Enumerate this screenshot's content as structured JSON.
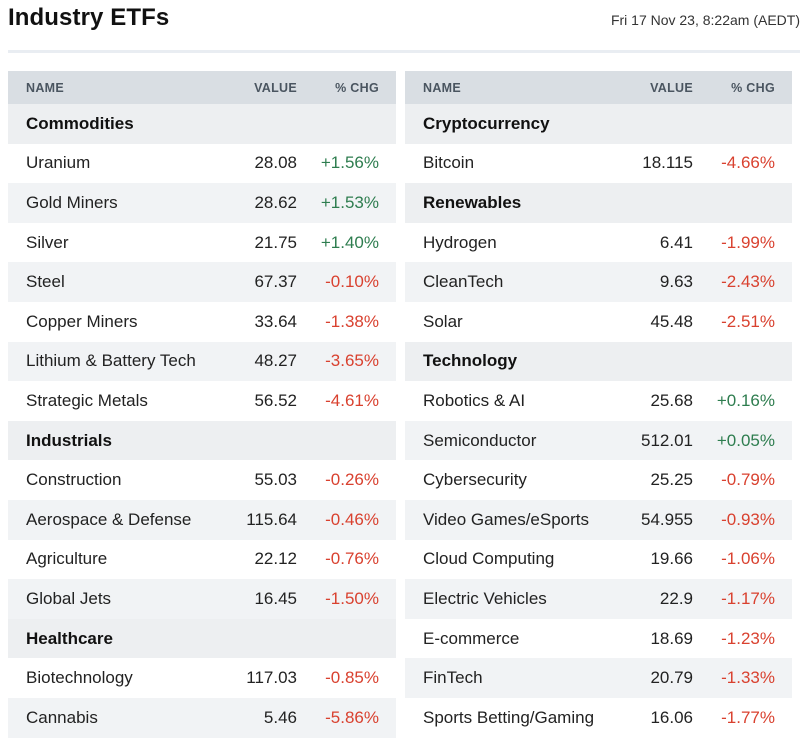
{
  "header": {
    "title": "Industry ETFs",
    "timestamp": "Fri 17 Nov 23, 8:22am (AEDT)"
  },
  "columns": {
    "name": "NAME",
    "value": "VALUE",
    "chg": "% CHG"
  },
  "colors": {
    "positive": "#2e7d4f",
    "negative": "#d9412f",
    "header_bg": "#d9dee3",
    "group_bg": "#edeff1",
    "alt_row_bg": "#f1f3f5"
  },
  "left_panel": [
    {
      "type": "group",
      "name": "Commodities"
    },
    {
      "type": "item",
      "name": "Uranium",
      "value": "28.08",
      "chg": "+1.56%",
      "dir": "up"
    },
    {
      "type": "item",
      "name": "Gold Miners",
      "value": "28.62",
      "chg": "+1.53%",
      "dir": "up"
    },
    {
      "type": "item",
      "name": "Silver",
      "value": "21.75",
      "chg": "+1.40%",
      "dir": "up"
    },
    {
      "type": "item",
      "name": "Steel",
      "value": "67.37",
      "chg": "-0.10%",
      "dir": "down"
    },
    {
      "type": "item",
      "name": "Copper Miners",
      "value": "33.64",
      "chg": "-1.38%",
      "dir": "down"
    },
    {
      "type": "item",
      "name": "Lithium & Battery Tech",
      "value": "48.27",
      "chg": "-3.65%",
      "dir": "down"
    },
    {
      "type": "item",
      "name": "Strategic Metals",
      "value": "56.52",
      "chg": "-4.61%",
      "dir": "down"
    },
    {
      "type": "group",
      "name": "Industrials"
    },
    {
      "type": "item",
      "name": "Construction",
      "value": "55.03",
      "chg": "-0.26%",
      "dir": "down"
    },
    {
      "type": "item",
      "name": "Aerospace & Defense",
      "value": "115.64",
      "chg": "-0.46%",
      "dir": "down"
    },
    {
      "type": "item",
      "name": "Agriculture",
      "value": "22.12",
      "chg": "-0.76%",
      "dir": "down"
    },
    {
      "type": "item",
      "name": "Global Jets",
      "value": "16.45",
      "chg": "-1.50%",
      "dir": "down"
    },
    {
      "type": "group",
      "name": "Healthcare"
    },
    {
      "type": "item",
      "name": "Biotechnology",
      "value": "117.03",
      "chg": "-0.85%",
      "dir": "down"
    },
    {
      "type": "item",
      "name": "Cannabis",
      "value": "5.46",
      "chg": "-5.86%",
      "dir": "down"
    }
  ],
  "right_panel": [
    {
      "type": "group",
      "name": "Cryptocurrency"
    },
    {
      "type": "item",
      "name": "Bitcoin",
      "value": "18.115",
      "chg": "-4.66%",
      "dir": "down"
    },
    {
      "type": "group",
      "name": "Renewables"
    },
    {
      "type": "item",
      "name": "Hydrogen",
      "value": "6.41",
      "chg": "-1.99%",
      "dir": "down"
    },
    {
      "type": "item",
      "name": "CleanTech",
      "value": "9.63",
      "chg": "-2.43%",
      "dir": "down"
    },
    {
      "type": "item",
      "name": "Solar",
      "value": "45.48",
      "chg": "-2.51%",
      "dir": "down"
    },
    {
      "type": "group",
      "name": "Technology"
    },
    {
      "type": "item",
      "name": "Robotics & AI",
      "value": "25.68",
      "chg": "+0.16%",
      "dir": "up"
    },
    {
      "type": "item",
      "name": "Semiconductor",
      "value": "512.01",
      "chg": "+0.05%",
      "dir": "up"
    },
    {
      "type": "item",
      "name": "Cybersecurity",
      "value": "25.25",
      "chg": "-0.79%",
      "dir": "down"
    },
    {
      "type": "item",
      "name": "Video Games/eSports",
      "value": "54.955",
      "chg": "-0.93%",
      "dir": "down"
    },
    {
      "type": "item",
      "name": "Cloud Computing",
      "value": "19.66",
      "chg": "-1.06%",
      "dir": "down"
    },
    {
      "type": "item",
      "name": "Electric Vehicles",
      "value": "22.9",
      "chg": "-1.17%",
      "dir": "down"
    },
    {
      "type": "item",
      "name": "E-commerce",
      "value": "18.69",
      "chg": "-1.23%",
      "dir": "down"
    },
    {
      "type": "item",
      "name": "FinTech",
      "value": "20.79",
      "chg": "-1.33%",
      "dir": "down"
    },
    {
      "type": "item",
      "name": "Sports Betting/Gaming",
      "value": "16.06",
      "chg": "-1.77%",
      "dir": "down"
    }
  ]
}
